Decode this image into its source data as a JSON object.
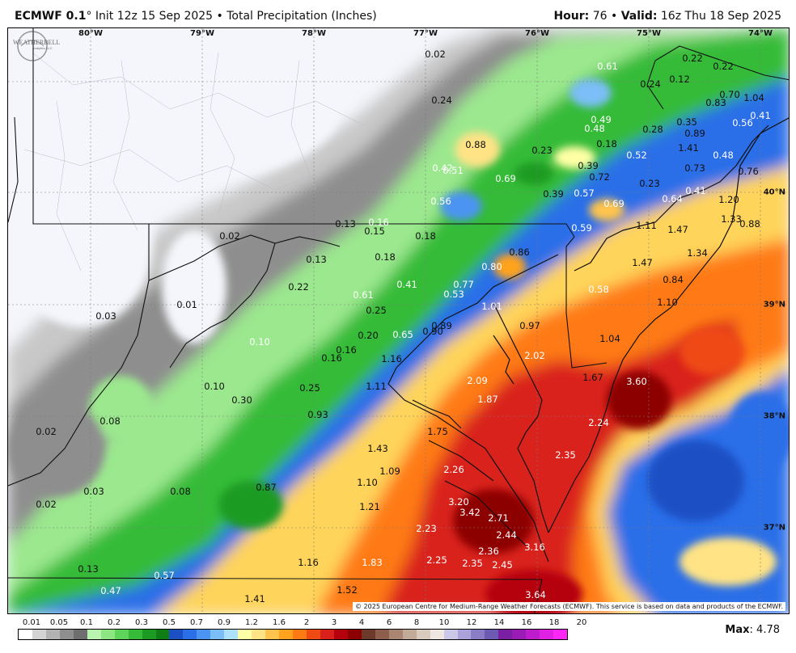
{
  "header": {
    "model": "ECMWF 0.1",
    "degree_mark": "°",
    "init": " Init 12z 15 Sep 2025 • Total Precipitation (Inches)",
    "hour_label": "Hour:",
    "hour_value": " 76 • ",
    "valid_label": "Valid:",
    "valid_value": " 16z Thu 18 Sep 2025"
  },
  "axes": {
    "longitudes": [
      "80°W",
      "79°W",
      "78°W",
      "77°W",
      "76°W",
      "75°W",
      "74°W"
    ],
    "latitudes": [
      "40°N",
      "39°N",
      "38°N",
      "37°N"
    ]
  },
  "labels": [
    {
      "t": "0.02",
      "c": "k"
    },
    {
      "t": "0.24",
      "c": "k"
    },
    {
      "t": "0.61",
      "c": "w"
    },
    {
      "t": "0.22",
      "c": "k"
    },
    {
      "t": "0.22",
      "c": "k"
    },
    {
      "t": "0.24",
      "c": "k"
    },
    {
      "t": "0.12",
      "c": "k"
    },
    {
      "t": "0.70",
      "c": "k"
    },
    {
      "t": "1.04",
      "c": "k"
    },
    {
      "t": "0.83",
      "c": "k"
    },
    {
      "t": "0.56",
      "c": "w"
    },
    {
      "t": "0.41",
      "c": "w"
    },
    {
      "t": "0.88",
      "c": "k"
    },
    {
      "t": "0.49",
      "c": "w"
    },
    {
      "t": "0.48",
      "c": "w"
    },
    {
      "t": "0.35",
      "c": "k"
    },
    {
      "t": "0.89",
      "c": "k"
    },
    {
      "t": "0.28",
      "c": "k"
    },
    {
      "t": "0.18",
      "c": "k"
    },
    {
      "t": "0.23",
      "c": "k"
    },
    {
      "t": "1.41",
      "c": "k"
    },
    {
      "t": "0.48",
      "c": "w"
    },
    {
      "t": "0.42",
      "c": "w"
    },
    {
      "t": "0.51",
      "c": "w"
    },
    {
      "t": "0.69",
      "c": "w"
    },
    {
      "t": "0.39",
      "c": "k"
    },
    {
      "t": "0.52",
      "c": "w"
    },
    {
      "t": "0.73",
      "c": "k"
    },
    {
      "t": "0.76",
      "c": "k"
    },
    {
      "t": "0.72",
      "c": "k"
    },
    {
      "t": "0.23",
      "c": "k"
    },
    {
      "t": "0.56",
      "c": "w"
    },
    {
      "t": "0.39",
      "c": "k"
    },
    {
      "t": "0.57",
      "c": "w"
    },
    {
      "t": "0.69",
      "c": "w"
    },
    {
      "t": "0.64",
      "c": "w"
    },
    {
      "t": "0.41",
      "c": "w"
    },
    {
      "t": "1.20",
      "c": "k"
    },
    {
      "t": "1.33",
      "c": "k"
    },
    {
      "t": "0.88",
      "c": "k"
    },
    {
      "t": "0.13",
      "c": "k"
    },
    {
      "t": "0.16",
      "c": "w"
    },
    {
      "t": "0.15",
      "c": "k"
    },
    {
      "t": "0.02",
      "c": "k"
    },
    {
      "t": "0.18",
      "c": "k"
    },
    {
      "t": "0.59",
      "c": "w"
    },
    {
      "t": "1.11",
      "c": "k"
    },
    {
      "t": "1.47",
      "c": "k"
    },
    {
      "t": "0.13",
      "c": "k"
    },
    {
      "t": "0.18",
      "c": "k"
    },
    {
      "t": "0.80",
      "c": "w"
    },
    {
      "t": "0.86",
      "c": "k"
    },
    {
      "t": "1.47",
      "c": "k"
    },
    {
      "t": "1.34",
      "c": "k"
    },
    {
      "t": "0.22",
      "c": "k"
    },
    {
      "t": "0.41",
      "c": "w"
    },
    {
      "t": "0.77",
      "c": "w"
    },
    {
      "t": "0.53",
      "c": "w"
    },
    {
      "t": "0.58",
      "c": "w"
    },
    {
      "t": "0.84",
      "c": "k"
    },
    {
      "t": "0.61",
      "c": "w"
    },
    {
      "t": "0.01",
      "c": "k"
    },
    {
      "t": "0.25",
      "c": "k"
    },
    {
      "t": "1.01",
      "c": "w"
    },
    {
      "t": "1.10",
      "c": "k"
    },
    {
      "t": "0.03",
      "c": "k"
    },
    {
      "t": "0.89",
      "c": "k"
    },
    {
      "t": "0.97",
      "c": "k"
    },
    {
      "t": "0.20",
      "c": "k"
    },
    {
      "t": "0.65",
      "c": "w"
    },
    {
      "t": "0.90",
      "c": "k"
    },
    {
      "t": "1.04",
      "c": "k"
    },
    {
      "t": "0.10",
      "c": "w"
    },
    {
      "t": "0.16",
      "c": "k"
    },
    {
      "t": "0.16",
      "c": "k"
    },
    {
      "t": "1.16",
      "c": "k"
    },
    {
      "t": "2.02",
      "c": "w"
    },
    {
      "t": "2.09",
      "c": "w"
    },
    {
      "t": "1.67",
      "c": "k"
    },
    {
      "t": "3.60",
      "c": "w"
    },
    {
      "t": "0.10",
      "c": "k"
    },
    {
      "t": "0.25",
      "c": "k"
    },
    {
      "t": "1.11",
      "c": "k"
    },
    {
      "t": "1.87",
      "c": "w"
    },
    {
      "t": "0.30",
      "c": "k"
    },
    {
      "t": "0.08",
      "c": "k"
    },
    {
      "t": "0.93",
      "c": "k"
    },
    {
      "t": "2.24",
      "c": "w"
    },
    {
      "t": "1.75",
      "c": "k"
    },
    {
      "t": "0.02",
      "c": "k"
    },
    {
      "t": "1.43",
      "c": "k"
    },
    {
      "t": "2.35",
      "c": "w"
    },
    {
      "t": "1.09",
      "c": "k"
    },
    {
      "t": "2.26",
      "c": "w"
    },
    {
      "t": "0.03",
      "c": "k"
    },
    {
      "t": "0.08",
      "c": "k"
    },
    {
      "t": "0.87",
      "c": "k"
    },
    {
      "t": "1.10",
      "c": "k"
    },
    {
      "t": "3.20",
      "c": "w"
    },
    {
      "t": "0.02",
      "c": "k"
    },
    {
      "t": "1.21",
      "c": "k"
    },
    {
      "t": "3.42",
      "c": "w"
    },
    {
      "t": "2.71",
      "c": "w"
    },
    {
      "t": "2.23",
      "c": "w"
    },
    {
      "t": "2.44",
      "c": "w"
    },
    {
      "t": "2.36",
      "c": "w"
    },
    {
      "t": "3.16",
      "c": "w"
    },
    {
      "t": "1.16",
      "c": "k"
    },
    {
      "t": "1.83",
      "c": "w"
    },
    {
      "t": "2.25",
      "c": "w"
    },
    {
      "t": "2.35",
      "c": "w"
    },
    {
      "t": "2.45",
      "c": "w"
    },
    {
      "t": "0.13",
      "c": "k"
    },
    {
      "t": "0.57",
      "c": "w"
    },
    {
      "t": "0.47",
      "c": "w"
    },
    {
      "t": "1.52",
      "c": "k"
    },
    {
      "t": "3.64",
      "c": "w"
    },
    {
      "t": "1.41",
      "c": "k"
    }
  ],
  "credit": "© 2025 European Centre for Medium-Range Weather Forecasts (ECMWF). This service is based on data and products of the ECMWF.",
  "logo": {
    "text1": "WEATHERBELL",
    "text2": "Analytics LLC"
  },
  "colorbar": {
    "colors": [
      "#ffffff",
      "#d3d3d3",
      "#b2b2b2",
      "#8e8e8e",
      "#6e6e6e",
      "#b9f5b0",
      "#8de682",
      "#5ed45a",
      "#36bb38",
      "#1c9b22",
      "#0f7d14",
      "#1d4fc4",
      "#2a6ee8",
      "#4b94f2",
      "#7bbef7",
      "#ace0fb",
      "#ffffa6",
      "#ffe385",
      "#ffc44e",
      "#ffa31e",
      "#ff7a12",
      "#ef4a14",
      "#d9201a",
      "#b5000d",
      "#8d0000",
      "#6b3a2b",
      "#8e5e4c",
      "#a98572",
      "#c2aa99",
      "#d9cabe",
      "#eee6e0",
      "#cbc7e8",
      "#aaa2d8",
      "#8a7dc6",
      "#6d5ab3",
      "#7a1fa2",
      "#9a1bb5",
      "#bc1ccc",
      "#de21e3",
      "#ff27f5"
    ],
    "ticks": [
      "0.01",
      "0.05",
      "0.1",
      "0.2",
      "0.3",
      "0.5",
      "0.7",
      "0.9",
      "1.2",
      "1.6",
      "2",
      "3",
      "4",
      "6",
      "8",
      "10",
      "12",
      "14",
      "16",
      "18",
      "20"
    ]
  },
  "max": {
    "label": "Max",
    "value": ": 4.78"
  }
}
